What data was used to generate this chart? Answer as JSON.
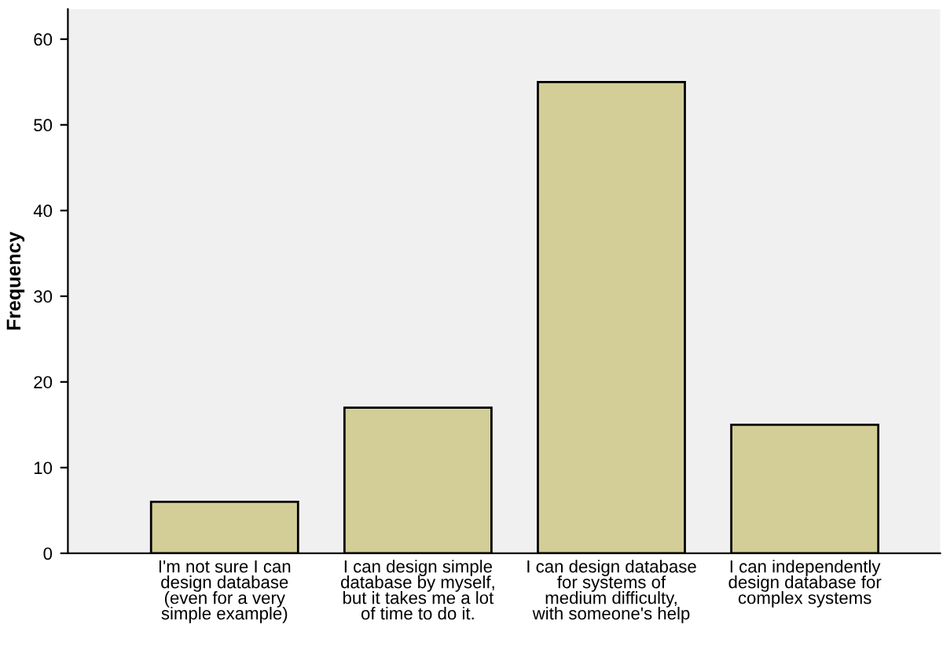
{
  "chart_data": {
    "type": "bar",
    "ylabel": "Frequency",
    "categories": [
      "I'm not sure I can\ndesign database\n(even for a very\nsimple example)",
      "I can design simple\ndatabase by myself,\nbut it takes me a lot\nof time to do it.",
      "I can design database\nfor systems of\nmedium difficulty,\nwith someone's help",
      "I can independently\ndesign database for\ncomplex systems"
    ],
    "values": [
      6,
      17,
      55,
      15
    ],
    "color": "#d3ce97",
    "ylim": [
      0,
      63.5
    ],
    "yticks": [
      0,
      10,
      20,
      30,
      40,
      50,
      60
    ],
    "grid": false,
    "legend": false
  }
}
